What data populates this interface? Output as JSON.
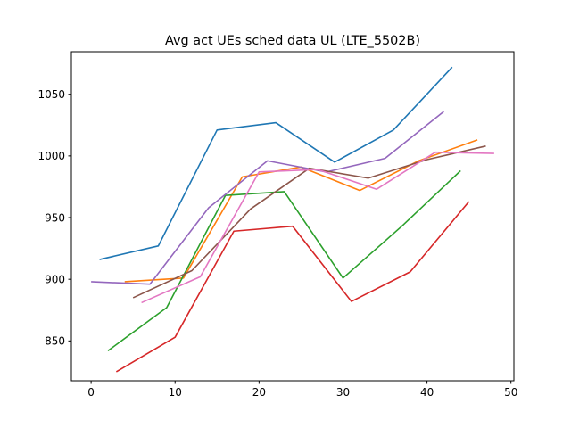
{
  "chart_data": {
    "type": "line",
    "title": "Avg act UEs sched data UL (LTE_5502B)",
    "xlabel": "",
    "ylabel": "",
    "xlim": [
      -2.35,
      50.35
    ],
    "ylim": [
      817.7,
      1084.5
    ],
    "x_ticks": [
      0,
      10,
      20,
      30,
      40,
      50
    ],
    "y_ticks": [
      850,
      900,
      950,
      1000,
      1050
    ],
    "grid": false,
    "legend": "none",
    "series": [
      {
        "color": "#1f77b4",
        "x": [
          1,
          8,
          15,
          22,
          29,
          36,
          43
        ],
        "y": [
          916,
          927,
          1021,
          1027,
          995,
          1021,
          1072
        ]
      },
      {
        "color": "#ff7f0e",
        "x": [
          4,
          11,
          18,
          25,
          32,
          39,
          46
        ],
        "y": [
          898,
          901,
          983,
          991,
          972,
          996,
          1013
        ]
      },
      {
        "color": "#2ca02c",
        "x": [
          2,
          9,
          16,
          23,
          30,
          37,
          44
        ],
        "y": [
          842,
          877,
          968,
          971,
          901,
          943,
          988
        ]
      },
      {
        "color": "#d62728",
        "x": [
          3,
          10,
          17,
          24,
          31,
          38,
          45
        ],
        "y": [
          825,
          853,
          939,
          943,
          882,
          906,
          963
        ]
      },
      {
        "color": "#9467bd",
        "x": [
          0,
          7,
          14,
          21,
          28,
          35,
          42
        ],
        "y": [
          898,
          896,
          958,
          996,
          987,
          998,
          1036
        ]
      },
      {
        "color": "#8c564b",
        "x": [
          5,
          12,
          19,
          26,
          33,
          40,
          47
        ],
        "y": [
          885,
          907,
          957,
          990,
          982,
          997,
          1008
        ]
      },
      {
        "color": "#e377c2",
        "x": [
          6,
          13,
          20,
          27,
          34,
          41,
          48
        ],
        "y": [
          881,
          902,
          987,
          989,
          973,
          1003,
          1002
        ]
      }
    ]
  }
}
